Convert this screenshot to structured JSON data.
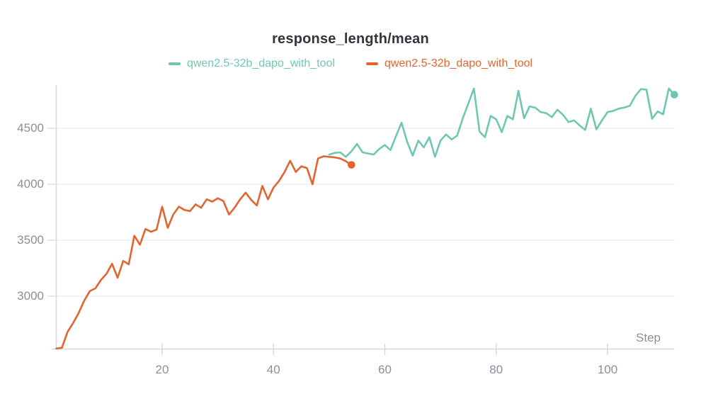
{
  "chart_data": {
    "type": "line",
    "title": "response_length/mean",
    "xlabel": "Step",
    "ylabel": "",
    "grid": "horizontal",
    "legend_position": "top-center",
    "x_ticks": [
      20,
      40,
      60,
      80,
      100
    ],
    "y_ticks": [
      3000,
      3500,
      4000,
      4500
    ],
    "xlim": [
      0,
      113
    ],
    "ylim": [
      2530,
      4880
    ],
    "axis_color": "#d9d9d9",
    "grid_color": "#ececec",
    "label_color": "#8a909a",
    "title_color": "#31353c",
    "series": [
      {
        "name": "qwen2.5-32b_dapo_with_tool",
        "color": "#6fc7b2",
        "end_marker": true,
        "x": [
          50,
          51,
          52,
          53,
          54,
          55,
          56,
          57,
          58,
          59,
          60,
          61,
          62,
          63,
          64,
          65,
          66,
          67,
          68,
          69,
          70,
          71,
          72,
          73,
          74,
          75,
          76,
          77,
          78,
          79,
          80,
          81,
          82,
          83,
          84,
          85,
          86,
          87,
          88,
          89,
          90,
          91,
          92,
          93,
          94,
          95,
          96,
          97,
          98,
          99,
          100,
          101,
          102,
          103,
          104,
          105,
          106,
          107,
          108,
          109,
          110,
          111,
          112
        ],
        "y": [
          4265,
          4280,
          4285,
          4245,
          4295,
          4360,
          4285,
          4275,
          4265,
          4315,
          4350,
          4305,
          4430,
          4550,
          4380,
          4255,
          4390,
          4330,
          4420,
          4245,
          4390,
          4445,
          4400,
          4435,
          4590,
          4720,
          4855,
          4470,
          4420,
          4610,
          4580,
          4465,
          4610,
          4580,
          4835,
          4590,
          4695,
          4685,
          4645,
          4635,
          4600,
          4665,
          4620,
          4555,
          4570,
          4525,
          4485,
          4675,
          4490,
          4570,
          4645,
          4655,
          4675,
          4685,
          4700,
          4790,
          4850,
          4845,
          4585,
          4650,
          4625,
          4855,
          4800
        ]
      },
      {
        "name": "qwen2.5-32b_dapo_with_tool",
        "color": "#e2642f",
        "end_marker": true,
        "x": [
          1,
          2,
          3,
          4,
          5,
          6,
          7,
          8,
          9,
          10,
          11,
          12,
          13,
          14,
          15,
          16,
          17,
          18,
          19,
          20,
          21,
          22,
          23,
          24,
          25,
          26,
          27,
          28,
          29,
          30,
          31,
          32,
          33,
          34,
          35,
          36,
          37,
          38,
          39,
          40,
          41,
          42,
          43,
          44,
          45,
          46,
          47,
          48,
          49,
          50,
          51,
          52,
          53,
          54
        ],
        "y": [
          2532,
          2540,
          2680,
          2760,
          2850,
          2960,
          3045,
          3070,
          3145,
          3200,
          3290,
          3165,
          3315,
          3285,
          3540,
          3460,
          3600,
          3575,
          3595,
          3800,
          3610,
          3730,
          3800,
          3770,
          3760,
          3820,
          3790,
          3865,
          3845,
          3875,
          3850,
          3730,
          3790,
          3865,
          3925,
          3860,
          3810,
          3985,
          3865,
          3970,
          4030,
          4110,
          4210,
          4110,
          4160,
          4145,
          4000,
          4230,
          4250,
          4245,
          4240,
          4230,
          4205,
          4173
        ]
      }
    ]
  }
}
